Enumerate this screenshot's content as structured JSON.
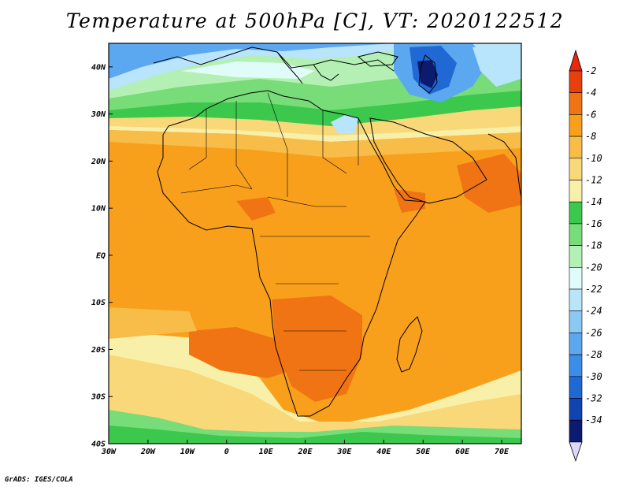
{
  "title": "Temperature at 500hPa [C], VT: 2020122512",
  "credit": "GrADS: IGES/COLA",
  "axes": {
    "lon_ticks": [
      "30W",
      "20W",
      "10W",
      "0",
      "10E",
      "20E",
      "30E",
      "40E",
      "50E",
      "60E",
      "70E"
    ],
    "lat_ticks": [
      "40N",
      "30N",
      "20N",
      "10N",
      "EQ",
      "10S",
      "20S",
      "30S",
      "40S"
    ]
  },
  "colorbar": {
    "labels": [
      "-2",
      "-4",
      "-6",
      "-8",
      "-10",
      "-12",
      "-14",
      "-16",
      "-18",
      "-20",
      "-22",
      "-24",
      "-26",
      "-28",
      "-30",
      "-32",
      "-34"
    ],
    "colors": [
      "#e8400c",
      "#f07414",
      "#f8a01c",
      "#f8bc48",
      "#f8d878",
      "#f8f0a8",
      "#3cc84c",
      "#78dc78",
      "#b4f0b4",
      "#e0fcf8",
      "#b8e4fc",
      "#8cc8f4",
      "#5ca8f0",
      "#3c8ce8",
      "#2068d4",
      "#1044b0",
      "#0c1a70"
    ],
    "top_arrow_color": "#e82808",
    "bottom_arrow_color": "#dcd8fc"
  },
  "field_colors": {
    "very_cold": "#0c1a70",
    "cold": "#2068d4",
    "cool_blue": "#5ca8f0",
    "light_blue": "#b8e4fc",
    "pale": "#e0fcf8",
    "light_green": "#b4f0b4",
    "green": "#78dc78",
    "dark_green": "#3cc84c",
    "pale_yellow": "#f8f0a8",
    "yellow": "#f8d878",
    "light_orange": "#f8bc48",
    "orange": "#f8a01c",
    "dark_orange": "#f07414",
    "red_orange": "#e8400c"
  }
}
